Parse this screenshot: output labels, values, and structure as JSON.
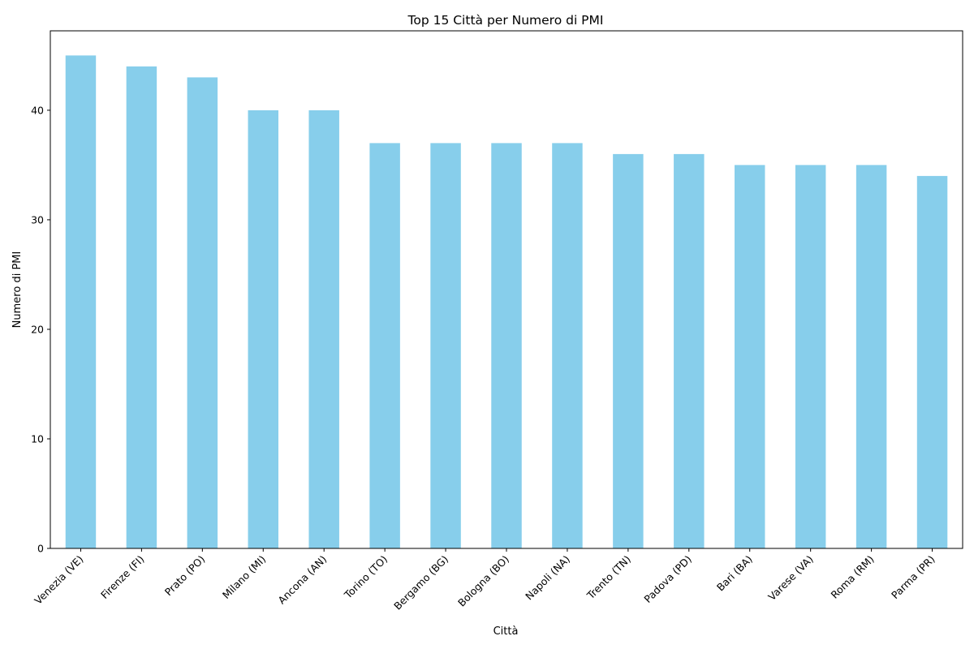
{
  "chart_data": {
    "type": "bar",
    "title": "Top 15 Città per Numero di PMI",
    "xlabel": "Città",
    "ylabel": "Numero di PMI",
    "categories": [
      "Venezia (VE)",
      "Firenze (FI)",
      "Prato (PO)",
      "Milano (MI)",
      "Ancona (AN)",
      "Torino (TO)",
      "Bergamo (BG)",
      "Bologna (BO)",
      "Napoli (NA)",
      "Trento (TN)",
      "Padova (PD)",
      "Bari (BA)",
      "Varese (VA)",
      "Roma (RM)",
      "Parma (PR)"
    ],
    "values": [
      45,
      44,
      43,
      40,
      40,
      37,
      37,
      37,
      37,
      36,
      36,
      35,
      35,
      35,
      34
    ],
    "ylim": [
      0,
      47.25
    ],
    "yticks": [
      0,
      10,
      20,
      30,
      40
    ],
    "bar_color": "#87ceeb",
    "grid": false,
    "legend": "none"
  }
}
